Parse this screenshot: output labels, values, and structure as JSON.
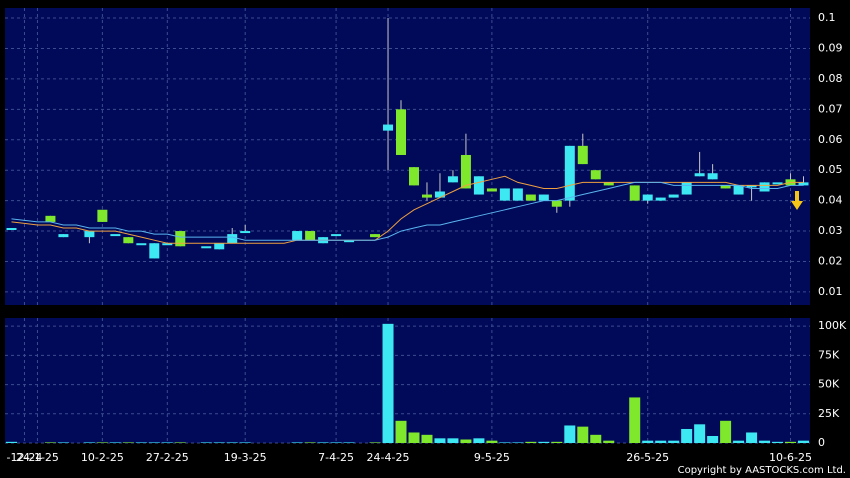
{
  "chart_data": {
    "type": "candlestick",
    "categories": [
      null,
      "-12-24",
      "24-1-25",
      null,
      null,
      null,
      null,
      "10-2-25",
      null,
      null,
      null,
      null,
      "27-2-25",
      null,
      null,
      null,
      null,
      null,
      "19-3-25",
      null,
      null,
      null,
      null,
      null,
      null,
      "7-4-25",
      null,
      null,
      null,
      "24-4-25",
      null,
      null,
      null,
      null,
      null,
      null,
      null,
      "9-5-25",
      null,
      null,
      null,
      null,
      null,
      null,
      null,
      null,
      null,
      null,
      null,
      "26-5-25",
      null,
      null,
      null,
      null,
      null,
      null,
      null,
      null,
      null,
      null,
      "10-6-25",
      null
    ],
    "open": [
      0.031,
      null,
      null,
      0.035,
      0.028,
      null,
      0.028,
      0.037,
      0.029,
      0.028,
      0.026,
      0.021,
      0.026,
      0.03,
      null,
      0.025,
      0.024,
      0.026,
      0.03,
      null,
      null,
      null,
      0.027,
      0.03,
      0.026,
      0.029,
      0.027,
      null,
      0.029,
      0.063,
      0.07,
      0.051,
      0.042,
      0.041,
      0.046,
      0.055,
      0.042,
      0.044,
      0.04,
      0.04,
      0.042,
      0.04,
      0.04,
      0.04,
      0.058,
      0.05,
      0.046,
      null,
      0.045,
      0.04,
      0.04,
      0.041,
      0.042,
      0.048,
      0.047,
      0.045,
      0.042,
      0.045,
      0.043,
      0.046,
      0.047,
      0.045
    ],
    "high": [
      0.031,
      null,
      null,
      0.035,
      0.029,
      null,
      0.03,
      0.037,
      0.029,
      0.028,
      0.026,
      0.026,
      0.026,
      0.03,
      null,
      0.025,
      0.026,
      0.031,
      0.032,
      null,
      null,
      null,
      0.03,
      0.03,
      0.028,
      0.029,
      0.027,
      null,
      0.029,
      0.1,
      0.073,
      0.051,
      0.046,
      0.049,
      0.05,
      0.062,
      0.048,
      0.044,
      0.044,
      0.044,
      0.042,
      0.042,
      0.04,
      0.058,
      0.062,
      0.05,
      0.046,
      null,
      0.045,
      0.042,
      0.041,
      0.042,
      0.046,
      0.056,
      0.052,
      0.045,
      0.045,
      0.045,
      0.046,
      0.046,
      0.049,
      0.048
    ],
    "low": [
      0.031,
      null,
      null,
      0.033,
      0.028,
      null,
      0.026,
      0.033,
      0.029,
      0.026,
      0.026,
      0.021,
      0.026,
      0.025,
      null,
      0.025,
      0.024,
      0.026,
      0.03,
      null,
      null,
      null,
      0.027,
      0.027,
      0.026,
      0.029,
      0.027,
      null,
      0.028,
      0.05,
      0.055,
      0.045,
      0.04,
      0.041,
      0.046,
      0.044,
      0.042,
      0.043,
      0.04,
      0.04,
      0.04,
      0.04,
      0.036,
      0.038,
      0.052,
      0.047,
      0.045,
      null,
      0.04,
      0.039,
      0.04,
      0.041,
      0.042,
      0.048,
      0.047,
      0.044,
      0.042,
      0.04,
      0.043,
      0.046,
      0.045,
      0.045
    ],
    "close": [
      0.031,
      null,
      null,
      0.033,
      0.029,
      null,
      0.03,
      0.033,
      0.029,
      0.026,
      0.026,
      0.026,
      0.026,
      0.025,
      null,
      0.025,
      0.026,
      0.029,
      0.03,
      null,
      null,
      null,
      0.03,
      0.027,
      0.028,
      0.029,
      0.027,
      null,
      0.028,
      0.065,
      0.055,
      0.045,
      0.041,
      0.043,
      0.048,
      0.044,
      0.048,
      0.043,
      0.044,
      0.044,
      0.04,
      0.042,
      0.038,
      0.058,
      0.052,
      0.047,
      0.045,
      null,
      0.04,
      0.042,
      0.041,
      0.042,
      0.046,
      0.049,
      0.049,
      0.044,
      0.045,
      0.045,
      0.046,
      0.046,
      0.045,
      0.046
    ],
    "up_color": "#3de8f2",
    "down_color": "#80e82c",
    "series": [
      {
        "color": "#f0a040",
        "values": [
          0.033,
          0.0325,
          0.032,
          0.032,
          0.031,
          0.031,
          0.03,
          0.03,
          0.03,
          0.029,
          0.028,
          0.027,
          0.026,
          0.026,
          0.026,
          0.026,
          0.026,
          0.026,
          0.026,
          0.026,
          0.026,
          0.026,
          0.027,
          0.027,
          0.027,
          0.027,
          0.027,
          0.027,
          0.027,
          0.03,
          0.034,
          0.037,
          0.039,
          0.041,
          0.043,
          0.045,
          0.046,
          0.047,
          0.048,
          0.046,
          0.045,
          0.044,
          0.044,
          0.045,
          0.046,
          0.046,
          0.046,
          0.046,
          0.046,
          0.046,
          0.046,
          0.046,
          0.046,
          0.046,
          0.046,
          0.046,
          0.045,
          0.045,
          0.045,
          0.045,
          0.046,
          0.046
        ]
      },
      {
        "color": "#5ab4f0",
        "values": [
          0.034,
          0.0335,
          0.033,
          0.033,
          0.032,
          0.032,
          0.031,
          0.031,
          0.031,
          0.03,
          0.03,
          0.029,
          0.029,
          0.028,
          0.028,
          0.028,
          0.028,
          0.028,
          0.027,
          0.027,
          0.027,
          0.027,
          0.027,
          0.027,
          0.027,
          0.027,
          0.027,
          0.027,
          0.027,
          0.028,
          0.03,
          0.031,
          0.032,
          0.032,
          0.033,
          0.034,
          0.035,
          0.036,
          0.037,
          0.038,
          0.039,
          0.04,
          0.04,
          0.041,
          0.042,
          0.043,
          0.044,
          0.045,
          0.046,
          0.046,
          0.046,
          0.045,
          0.045,
          0.045,
          0.045,
          0.045,
          0.045,
          0.044,
          0.044,
          0.044,
          0.045,
          0.045
        ]
      }
    ],
    "ylim": [
      0.0057,
      0.1033
    ],
    "yticks": [
      0.01,
      0.02,
      0.03,
      0.04,
      0.05,
      0.06,
      0.07,
      0.08,
      0.09,
      0.1
    ],
    "volume": [
      1000,
      null,
      null,
      500,
      500,
      null,
      500,
      500,
      500,
      500,
      500,
      500,
      500,
      500,
      null,
      500,
      500,
      500,
      500,
      null,
      null,
      null,
      500,
      500,
      500,
      500,
      500,
      null,
      500,
      102000,
      19000,
      9000,
      7000,
      4000,
      4000,
      3000,
      4000,
      2000,
      500,
      500,
      1000,
      1000,
      1000,
      15000,
      14000,
      7000,
      2000,
      null,
      39000,
      2000,
      2000,
      2000,
      12000,
      16000,
      6000,
      19000,
      2000,
      9000,
      2000,
      1000,
      1000,
      2000
    ],
    "volume_ylim": [
      0,
      107000
    ],
    "volume_ticks": [
      0,
      {
        "value": 25000,
        "label": "25K"
      },
      {
        "value": 50000,
        "label": "50K"
      },
      {
        "value": 75000,
        "label": "75K"
      },
      {
        "value": 100000,
        "label": "100K"
      }
    ],
    "grid": true,
    "copyright": "Copyright by AASTOCKS.com Ltd."
  }
}
